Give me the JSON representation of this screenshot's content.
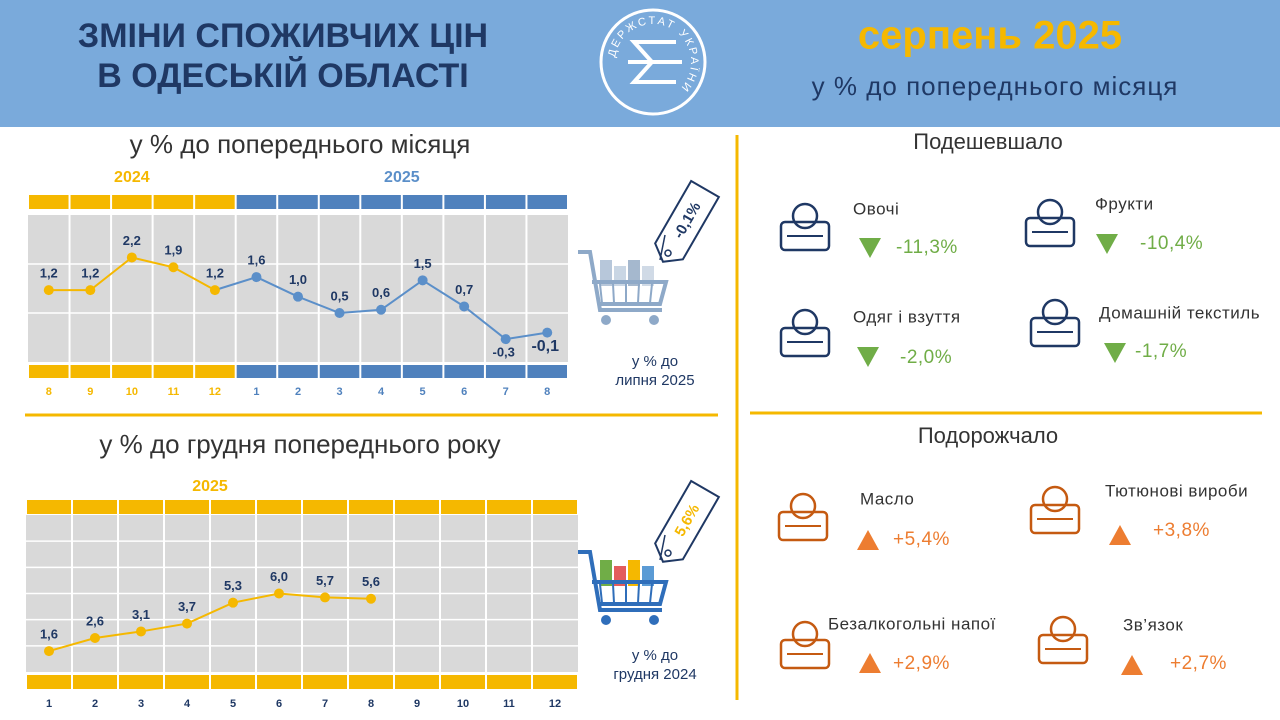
{
  "header": {
    "title_lines": [
      "ЗМІНИ СПОЖИВЧИХ ЦІН",
      "В ОДЕСЬКІЙ ОБЛАСТІ"
    ],
    "logo_text": "ДЕРЖСТАТ УКРАЇНИ",
    "period": "серпень 2025",
    "subtitle": "у % до попереднього місяця"
  },
  "chart_data": [
    {
      "type": "line",
      "title": "у % до попереднього місяця",
      "categories": [
        "8",
        "9",
        "10",
        "11",
        "12",
        "1",
        "2",
        "3",
        "4",
        "5",
        "6",
        "7",
        "8"
      ],
      "series": [
        {
          "name": "2024",
          "color": "#f5b800",
          "values": [
            1.2,
            1.2,
            2.2,
            1.9,
            1.2,
            null,
            null,
            null,
            null,
            null,
            null,
            null,
            null
          ],
          "value_labels": [
            "1,2",
            "1,2",
            "2,2",
            "1,9",
            "1,2",
            null,
            null,
            null,
            null,
            null,
            null,
            null,
            null
          ]
        },
        {
          "name": "2025",
          "color": "#5b8fc9",
          "values": [
            null,
            null,
            null,
            null,
            null,
            1.6,
            1.0,
            0.5,
            0.6,
            1.5,
            0.7,
            -0.3,
            -0.1
          ],
          "value_labels": [
            null,
            null,
            null,
            null,
            null,
            "1,6",
            "1,0",
            "0,5",
            "0,6",
            "1,5",
            "0,7",
            "-0,3",
            "-0,1"
          ]
        }
      ],
      "ylim": [
        -1,
        3.5
      ],
      "yticks": [
        0.5,
        2
      ],
      "grid": true,
      "callout": {
        "value": "-0,1%",
        "caption_lines": [
          "у % до",
          "липня 2025"
        ]
      }
    },
    {
      "type": "line",
      "title": "у % до грудня попереднього року",
      "categories": [
        "1",
        "2",
        "3",
        "4",
        "5",
        "6",
        "7",
        "8",
        "9",
        "10",
        "11",
        "12"
      ],
      "series": [
        {
          "name": "2025",
          "color": "#f5b800",
          "values": [
            1.6,
            2.6,
            3.1,
            3.7,
            5.3,
            6.0,
            5.7,
            5.6,
            null,
            null,
            null,
            null
          ],
          "value_labels": [
            "1,6",
            "2,6",
            "3,1",
            "3,7",
            "5,3",
            "6,0",
            "5,7",
            "5,6",
            null,
            null,
            null,
            null
          ]
        }
      ],
      "ylim": [
        0,
        12
      ],
      "yticks": [
        2,
        4,
        6,
        8,
        10
      ],
      "grid": true,
      "callout": {
        "value": "5,6%",
        "caption_lines": [
          "у % до",
          "грудня 2024"
        ]
      }
    }
  ],
  "cheaper": {
    "heading": "Подешевшало",
    "items": [
      {
        "name": "Овочі",
        "change": "-11,3%"
      },
      {
        "name": "Фрукти",
        "change": "-10,4%"
      },
      {
        "name": "Одяг і взуття",
        "change": "-2,0%"
      },
      {
        "name": "Домашній текстиль",
        "change": "-1,7%"
      }
    ]
  },
  "pricier": {
    "heading": "Подорожчало",
    "items": [
      {
        "name": "Масло",
        "change": "+5,4%"
      },
      {
        "name": "Тютюнові вироби",
        "change": "+3,8%"
      },
      {
        "name": "Безалкогольні напої",
        "change": "+2,9%"
      },
      {
        "name": "Зв’язок",
        "change": "+2,7%"
      }
    ]
  }
}
